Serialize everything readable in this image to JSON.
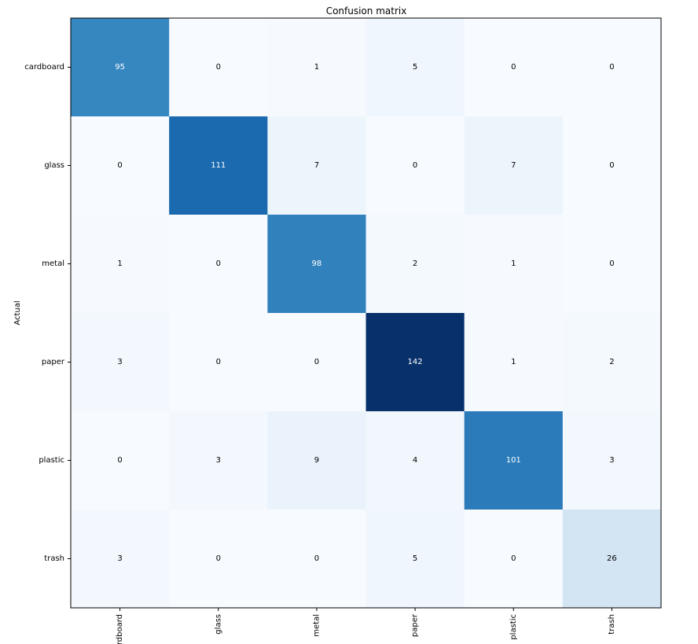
{
  "chart_data": {
    "type": "heatmap",
    "title": "Confusion matrix",
    "ylabel": "Actual",
    "xlabel": "",
    "x_categories": [
      "cardboard",
      "glass",
      "metal",
      "paper",
      "plastic",
      "trash"
    ],
    "y_categories": [
      "cardboard",
      "glass",
      "metal",
      "paper",
      "plastic",
      "trash"
    ],
    "values": [
      [
        95,
        0,
        1,
        5,
        0,
        0
      ],
      [
        0,
        111,
        7,
        0,
        7,
        0
      ],
      [
        1,
        0,
        98,
        2,
        1,
        0
      ],
      [
        3,
        0,
        0,
        142,
        1,
        2
      ],
      [
        0,
        3,
        9,
        4,
        101,
        3
      ],
      [
        3,
        0,
        0,
        5,
        0,
        26
      ]
    ],
    "value_range": [
      0,
      142
    ],
    "colormap": "Blues",
    "grid": false,
    "legend": "none"
  }
}
